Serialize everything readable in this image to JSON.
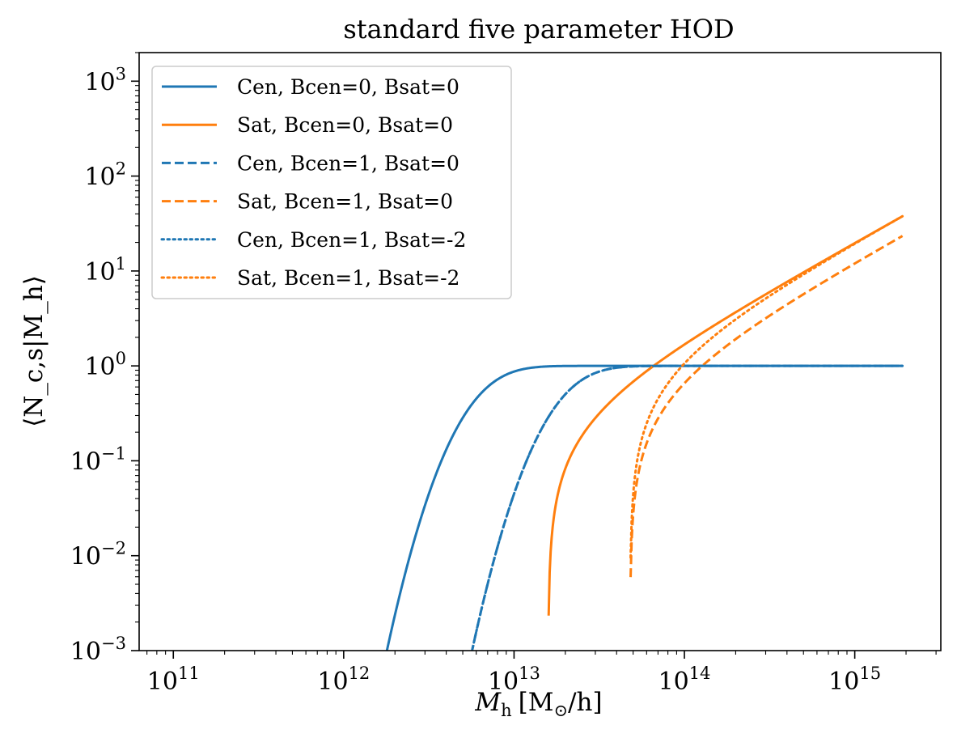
{
  "chart_data": {
    "type": "line",
    "title": "standard five parameter HOD",
    "xlabel": "M_h [M_⊙/h]",
    "xlabel_parts": {
      "main": "M",
      "sub": "h",
      "bracket": "[M",
      "sun": "⊙",
      "tail": "/h]"
    },
    "ylabel": "⟨N_c,s|M_h⟩",
    "xscale": "log",
    "yscale": "log",
    "xlim": [
      63000000000.0,
      3200000000000000.0
    ],
    "ylim": [
      0.001,
      2000
    ],
    "x_ticks": [
      {
        "value": 100000000000.0,
        "base": "10",
        "exp": "11"
      },
      {
        "value": 1000000000000.0,
        "base": "10",
        "exp": "12"
      },
      {
        "value": 10000000000000.0,
        "base": "10",
        "exp": "13"
      },
      {
        "value": 100000000000000.0,
        "base": "10",
        "exp": "14"
      },
      {
        "value": 1000000000000000.0,
        "base": "10",
        "exp": "15"
      }
    ],
    "y_ticks": [
      {
        "value": 0.001,
        "base": "10",
        "exp": "−3"
      },
      {
        "value": 0.01,
        "base": "10",
        "exp": "−2"
      },
      {
        "value": 0.1,
        "base": "10",
        "exp": "−1"
      },
      {
        "value": 1,
        "base": "10",
        "exp": "0"
      },
      {
        "value": 10,
        "base": "10",
        "exp": "1"
      },
      {
        "value": 100,
        "base": "10",
        "exp": "2"
      },
      {
        "value": 1000,
        "base": "10",
        "exp": "3"
      }
    ],
    "grid": false,
    "legend_position": "upper-left",
    "colors": {
      "cen": "#1f77b4",
      "sat": "#ff7f0e"
    },
    "series": [
      {
        "name": "Cen, Bcen=0, Bsat=0",
        "kind": "cen",
        "logMmin": 12.8,
        "sigma": 0.25,
        "color": "#1f77b4",
        "dash": "solid"
      },
      {
        "name": "Sat, Bcen=0, Bsat=0",
        "kind": "sat",
        "logM0": 13.2,
        "logM1": 13.7,
        "alpha": 1.0,
        "color": "#ff7f0e",
        "dash": "solid"
      },
      {
        "name": "Cen, Bcen=1, Bsat=0",
        "kind": "cen",
        "logMmin": 13.3,
        "sigma": 0.25,
        "color": "#1f77b4",
        "dash": "dashed"
      },
      {
        "name": "Sat, Bcen=1, Bsat=0",
        "kind": "sat",
        "logM0": 13.68,
        "logM1": 13.9,
        "alpha": 1.0,
        "color": "#ff7f0e",
        "dash": "dashed"
      },
      {
        "name": "Cen, Bcen=1, Bsat=-2",
        "kind": "cen",
        "logMmin": 13.3,
        "sigma": 0.25,
        "color": "#1f77b4",
        "dash": "dotted"
      },
      {
        "name": "Sat, Bcen=1, Bsat=-2",
        "kind": "sat",
        "logM0": 13.68,
        "logM1": 13.692,
        "alpha": 1.0,
        "color": "#ff7f0e",
        "dash": "dotted"
      }
    ],
    "x_range_plotted": [
      10,
      15.28
    ]
  }
}
